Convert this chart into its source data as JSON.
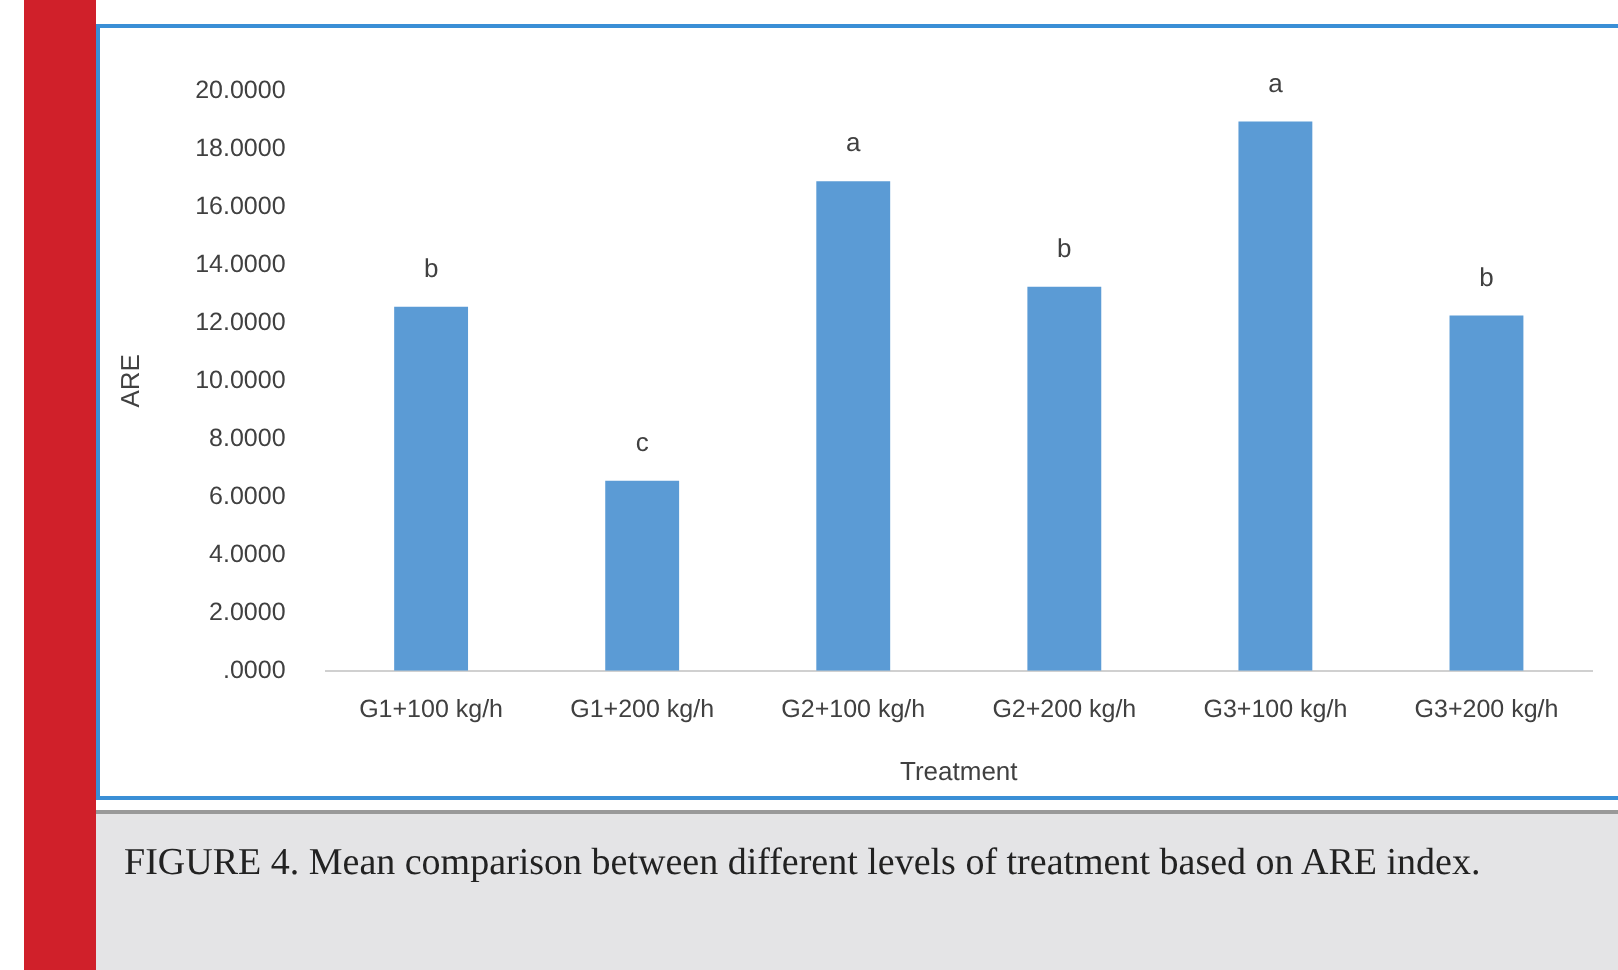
{
  "chart_data": {
    "type": "bar",
    "xlabel": "Treatment",
    "ylabel": "ARE",
    "categories": [
      "G1+100 kg/h",
      "G1+200 kg/h",
      "G2+100 kg/h",
      "G2+200 kg/h",
      "G3+100 kg/h",
      "G3+200 kg/h"
    ],
    "values": [
      12.56,
      6.56,
      16.89,
      13.25,
      18.95,
      12.26
    ],
    "color": "#5b9bd5",
    "ylim": [
      0,
      20
    ],
    "yticks": [
      {
        "value": 0,
        "label": ".0000"
      },
      {
        "value": 2,
        "label": "2.0000"
      },
      {
        "value": 4,
        "label": "4.0000"
      },
      {
        "value": 6,
        "label": "6.0000"
      },
      {
        "value": 8,
        "label": "8.0000"
      },
      {
        "value": 10,
        "label": "10.0000"
      },
      {
        "value": 12,
        "label": "12.0000"
      },
      {
        "value": 14,
        "label": "14.0000"
      },
      {
        "value": 16,
        "label": "16.0000"
      },
      {
        "value": 18,
        "label": "18.0000"
      },
      {
        "value": 20,
        "label": "20.0000"
      }
    ],
    "grid": false,
    "legend": false,
    "annotations": [
      {
        "text": "b",
        "x": "G1+100 kg/h",
        "y": 12.56
      },
      {
        "text": "c",
        "x": "G1+200 kg/h",
        "y": 6.56
      },
      {
        "text": "a",
        "x": "G2+100 kg/h",
        "y": 16.89
      },
      {
        "text": "b",
        "x": "G2+200 kg/h",
        "y": 13.25
      },
      {
        "text": "a",
        "x": "G3+100 kg/h",
        "y": 18.95
      },
      {
        "text": "b",
        "x": "G3+200 kg/h",
        "y": 12.26
      },
      "FIGURE 4. Mean comparison between different levels of treatment based on ARE index."
    ]
  }
}
